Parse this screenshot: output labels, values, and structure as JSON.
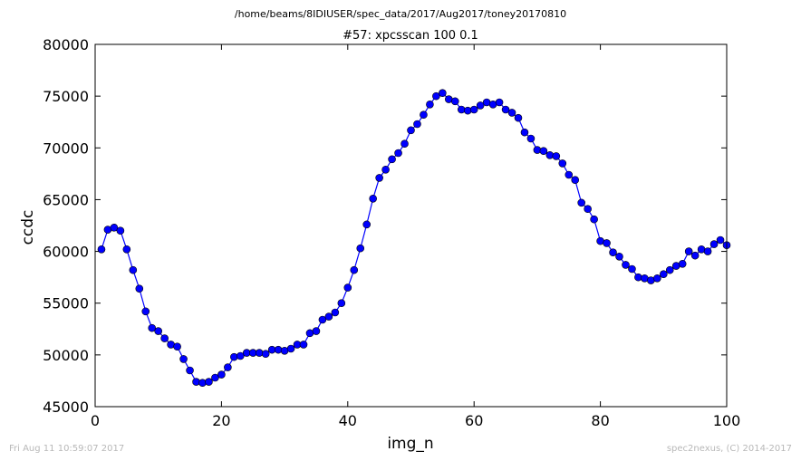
{
  "figure": {
    "path_title": "/home/beams/8IDIUSER/spec_data/2017/Aug2017/toney20170810",
    "footer_left": "Fri Aug 11 10:59:07 2017",
    "footer_right": "spec2nexus, (C) 2014-2017"
  },
  "chart_data": {
    "type": "line",
    "title": "#57: xpcsscan 100 0.1",
    "xlabel": "img_n",
    "ylabel": "ccdc",
    "xlim": [
      0,
      100
    ],
    "ylim": [
      45000,
      80000
    ],
    "xticks": [
      "0",
      "20",
      "40",
      "60",
      "80",
      "100"
    ],
    "yticks": [
      "45000",
      "50000",
      "55000",
      "60000",
      "65000",
      "70000",
      "75000",
      "80000"
    ],
    "grid": false,
    "legend": "none",
    "marker": "circle",
    "color": "#0000ff",
    "series": [
      {
        "x": [
          1,
          2,
          3,
          4,
          5,
          6,
          7,
          8,
          9,
          10,
          11,
          12,
          13,
          14,
          15,
          16,
          17,
          18,
          19,
          20,
          21,
          22,
          23,
          24,
          25,
          26,
          27,
          28,
          29,
          30,
          31,
          32,
          33,
          34,
          35,
          36,
          37,
          38,
          39,
          40,
          41,
          42,
          43,
          44,
          45,
          46,
          47,
          48,
          49,
          50,
          51,
          52,
          53,
          54,
          55,
          56,
          57,
          58,
          59,
          60,
          61,
          62,
          63,
          64,
          65,
          66,
          67,
          68,
          69,
          70,
          71,
          72,
          73,
          74,
          75,
          76,
          77,
          78,
          79,
          80,
          81,
          82,
          83,
          84,
          85,
          86,
          87,
          88,
          89,
          90,
          91,
          92,
          93,
          94,
          95,
          96,
          97,
          98,
          99,
          100
        ],
        "y": [
          60200,
          62100,
          62300,
          62000,
          60200,
          58200,
          56400,
          54200,
          52600,
          52300,
          51600,
          51000,
          50800,
          49600,
          48500,
          47400,
          47300,
          47400,
          47800,
          48100,
          48800,
          49800,
          49900,
          50200,
          50200,
          50200,
          50100,
          50500,
          50500,
          50400,
          50600,
          51000,
          51000,
          52100,
          52300,
          53400,
          53700,
          54100,
          55000,
          56500,
          58200,
          60300,
          62600,
          65100,
          67100,
          67900,
          68900,
          69500,
          70400,
          71700,
          72300,
          73200,
          74200,
          75000,
          75300,
          74700,
          74500,
          73700,
          73600,
          73700,
          74100,
          74400,
          74200,
          74400,
          73700,
          73400,
          72900,
          71500,
          70900,
          69800,
          69700,
          69300,
          69200,
          68500,
          67400,
          66900,
          64700,
          64100,
          63100,
          61000,
          60800,
          59900,
          59500,
          58700,
          58300,
          57500,
          57400,
          57200,
          57400,
          57800,
          58200,
          58600,
          58800,
          60000,
          59600,
          60200,
          60000,
          60700,
          61100,
          60600
        ]
      }
    ]
  }
}
